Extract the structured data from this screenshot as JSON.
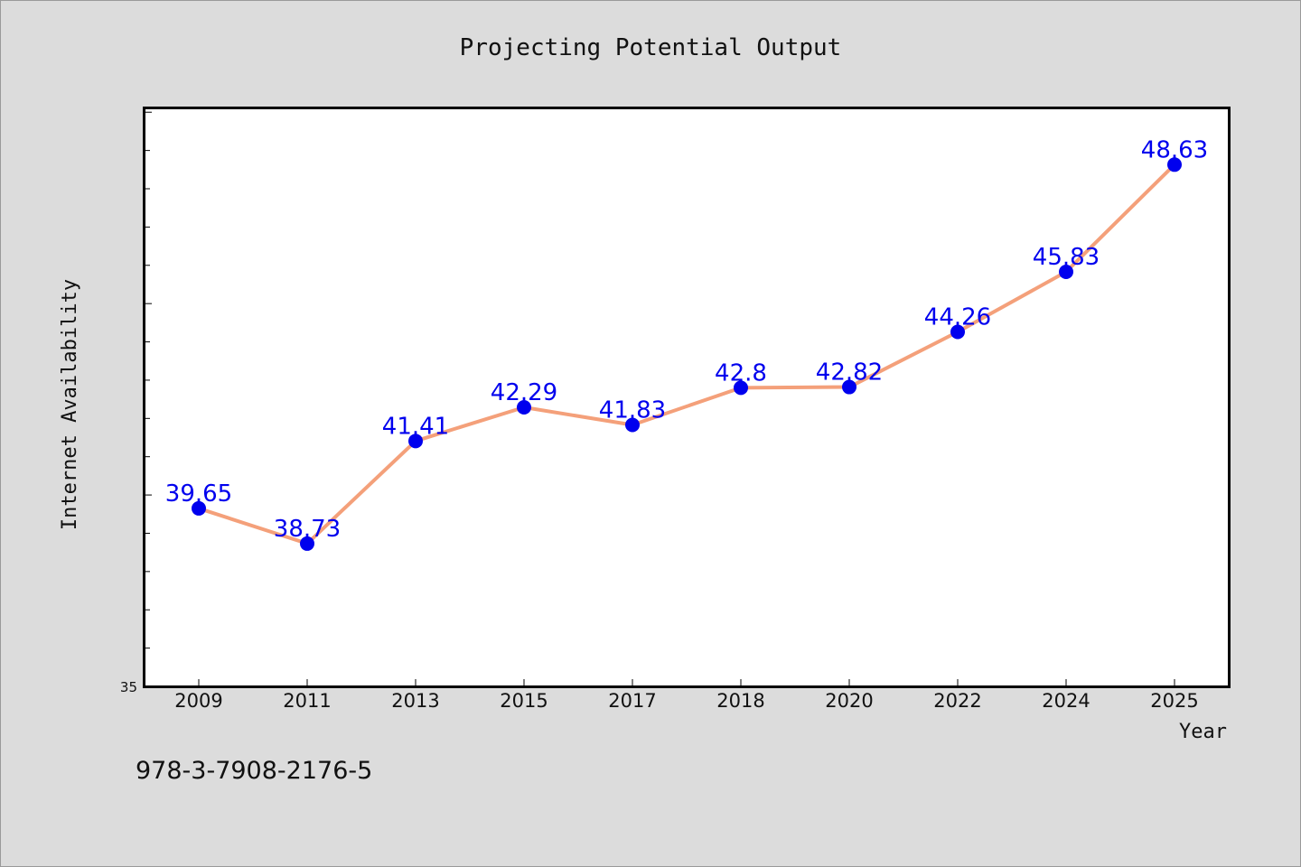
{
  "footer": {
    "id_text": "978-3-7908-2176-5"
  },
  "colors": {
    "background": "#dcdcdc",
    "plot_background": "#ffffff",
    "line": "#f4a07a",
    "marker": "#0000ee",
    "label": "#0000ee"
  },
  "chart_data": {
    "type": "line",
    "title": "Projecting Potential Output",
    "xlabel": "Year",
    "ylabel": "Internet Availability",
    "categories": [
      "2009",
      "2011",
      "2013",
      "2015",
      "2017",
      "2018",
      "2020",
      "2022",
      "2024",
      "2025"
    ],
    "series": [
      {
        "values": [
          39.65,
          38.73,
          41.41,
          42.29,
          41.83,
          42.8,
          42.82,
          44.26,
          45.83,
          48.63
        ]
      }
    ],
    "data_labels": [
      "39.65",
      "38.73",
      "41.41",
      "42.29",
      "41.83",
      "42.8",
      "42.82",
      "44.26",
      "45.83",
      "48.63"
    ],
    "ylim": [
      35,
      50.1
    ],
    "y_tick_label": "35",
    "grid": false,
    "legend": "none"
  }
}
